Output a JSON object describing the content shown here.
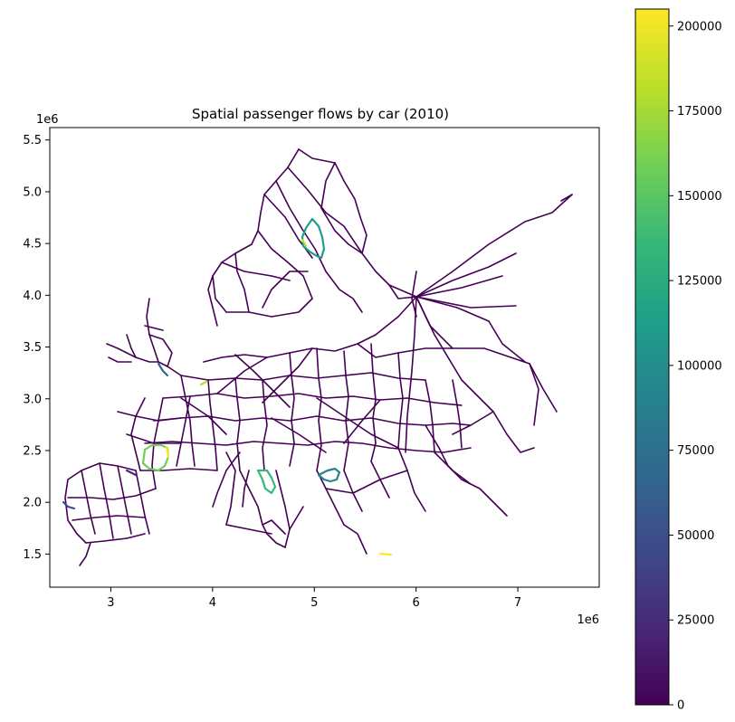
{
  "title": "Spatial passenger flows by car (2010)",
  "x_axis": {
    "ticks": [
      "3",
      "4",
      "5",
      "6",
      "7"
    ],
    "tick_values": [
      3,
      4,
      5,
      6,
      7
    ],
    "offset_label": "1e6",
    "range": [
      2.4,
      7.8
    ]
  },
  "y_axis": {
    "ticks": [
      "1.5",
      "2.0",
      "2.5",
      "3.0",
      "3.5",
      "4.0",
      "4.5",
      "5.0",
      "5.5"
    ],
    "tick_values": [
      1.5,
      2.0,
      2.5,
      3.0,
      3.5,
      4.0,
      4.5,
      5.0,
      5.5
    ],
    "offset_label": "1e6",
    "range": [
      1.18,
      5.62
    ]
  },
  "colorbar": {
    "colormap": "viridis",
    "ticks": [
      "0",
      "25000",
      "50000",
      "75000",
      "100000",
      "125000",
      "150000",
      "175000",
      "200000"
    ],
    "tick_values": [
      0,
      25000,
      50000,
      75000,
      100000,
      125000,
      150000,
      175000,
      200000
    ],
    "range": [
      0,
      205000
    ],
    "colors": [
      "#440154",
      "#482878",
      "#3e4989",
      "#31688e",
      "#26828e",
      "#1f9e89",
      "#35b779",
      "#6ece58",
      "#b5de2b",
      "#fde725"
    ]
  },
  "map": {
    "base_color": "#440154",
    "description_of_high_flow_segments": [
      {
        "value": 140000
      },
      {
        "value": 185000
      },
      {
        "value": 160000
      },
      {
        "value": 120000
      },
      {
        "value": 90000
      },
      {
        "value": 200000
      },
      {
        "value": 60000
      },
      {
        "value": 45000
      }
    ]
  }
}
